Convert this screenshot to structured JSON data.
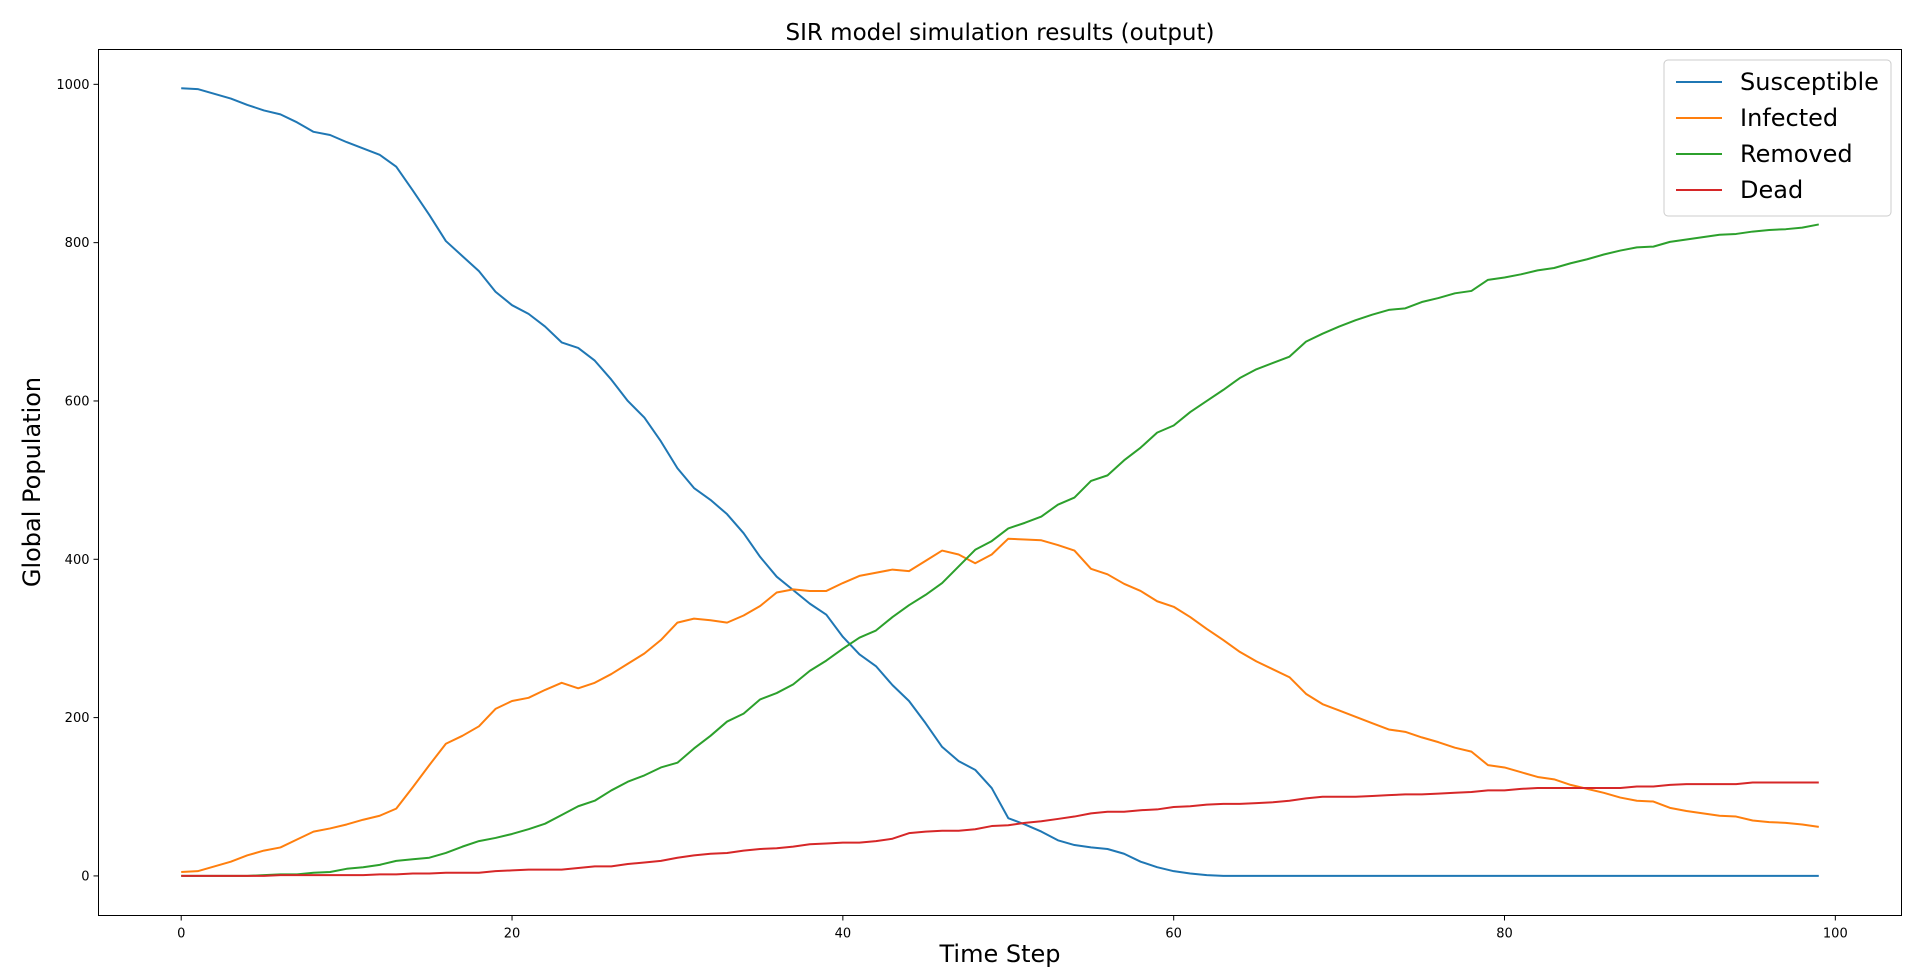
{
  "chart_data": {
    "type": "line",
    "title": "SIR model simulation results (output)",
    "xlabel": "Time Step",
    "ylabel": "Global Population",
    "xlim": [
      -5,
      104
    ],
    "ylim": [
      -50,
      1044
    ],
    "xticks": [
      0,
      20,
      40,
      60,
      80,
      100
    ],
    "yticks": [
      0,
      200,
      400,
      600,
      800,
      1000
    ],
    "grid": false,
    "legend_position": "top-right",
    "x": [
      0,
      1,
      2,
      3,
      4,
      5,
      6,
      7,
      8,
      9,
      10,
      11,
      12,
      13,
      14,
      15,
      16,
      17,
      18,
      19,
      20,
      21,
      22,
      23,
      24,
      25,
      26,
      27,
      28,
      29,
      30,
      31,
      32,
      33,
      34,
      35,
      36,
      37,
      38,
      39,
      40,
      41,
      42,
      43,
      44,
      45,
      46,
      47,
      48,
      49,
      50,
      51,
      52,
      53,
      54,
      55,
      56,
      57,
      58,
      59,
      60,
      61,
      62,
      63,
      64,
      65,
      66,
      67,
      68,
      69,
      70,
      71,
      72,
      73,
      74,
      75,
      76,
      77,
      78,
      79,
      80,
      81,
      82,
      83,
      84,
      85,
      86,
      87,
      88,
      89,
      90,
      91,
      92,
      93,
      94,
      95,
      96,
      97,
      98,
      99
    ],
    "series": [
      {
        "name": "Susceptible",
        "color": "#1f77b4",
        "values": [
          995,
          994,
          988,
          982,
          974,
          967,
          962,
          952,
          940,
          936,
          927,
          919,
          911,
          896,
          866,
          835,
          802,
          783,
          764,
          738,
          721,
          710,
          694,
          674,
          667,
          651,
          627,
          600,
          579,
          549,
          515,
          490,
          475,
          457,
          433,
          403,
          378,
          361,
          344,
          330,
          302,
          280,
          265,
          241,
          221,
          193,
          163,
          145,
          134,
          111,
          73,
          65,
          56,
          45,
          39,
          36,
          34,
          28,
          18,
          11,
          6,
          3,
          1,
          0,
          0,
          0,
          0,
          0,
          0,
          0,
          0,
          0,
          0,
          0,
          0,
          0,
          0,
          0,
          0,
          0,
          0,
          0,
          0,
          0,
          0,
          0,
          0,
          0,
          0,
          0,
          0,
          0,
          0,
          0,
          0,
          0,
          0,
          0,
          0,
          0
        ]
      },
      {
        "name": "Infected",
        "color": "#ff7f0e",
        "values": [
          5,
          6,
          12,
          18,
          26,
          32,
          36,
          46,
          56,
          60,
          65,
          71,
          76,
          85,
          112,
          140,
          167,
          177,
          189,
          211,
          221,
          225,
          235,
          244,
          237,
          244,
          255,
          268,
          281,
          298,
          320,
          325,
          323,
          320,
          329,
          341,
          358,
          362,
          360,
          360,
          370,
          379,
          383,
          387,
          385,
          398,
          411,
          406,
          395,
          406,
          426,
          425,
          424,
          418,
          411,
          388,
          381,
          369,
          360,
          347,
          340,
          327,
          312,
          298,
          283,
          271,
          261,
          251,
          230,
          217,
          209,
          201,
          193,
          185,
          182,
          175,
          169,
          162,
          157,
          140,
          137,
          131,
          125,
          122,
          115,
          110,
          105,
          99,
          95,
          94,
          86,
          82,
          79,
          76,
          75,
          70,
          68,
          67,
          65,
          62
        ]
      },
      {
        "name": "Removed",
        "color": "#2ca02c",
        "values": [
          0,
          0,
          0,
          0,
          0,
          1,
          2,
          2,
          4,
          5,
          9,
          11,
          14,
          19,
          21,
          23,
          29,
          37,
          44,
          48,
          53,
          59,
          66,
          77,
          88,
          95,
          108,
          119,
          127,
          137,
          143,
          161,
          177,
          195,
          205,
          223,
          231,
          242,
          259,
          272,
          287,
          301,
          310,
          327,
          342,
          355,
          370,
          391,
          412,
          423,
          439,
          446,
          454,
          469,
          478,
          499,
          506,
          525,
          541,
          560,
          569,
          586,
          600,
          614,
          629,
          640,
          648,
          656,
          675,
          685,
          694,
          702,
          709,
          715,
          717,
          725,
          730,
          736,
          739,
          753,
          756,
          760,
          765,
          768,
          774,
          779,
          785,
          790,
          794,
          795,
          801,
          804,
          807,
          810,
          811,
          814,
          816,
          817,
          819,
          823
        ]
      },
      {
        "name": "Dead",
        "color": "#d62728",
        "values": [
          0,
          0,
          0,
          0,
          0,
          0,
          1,
          1,
          1,
          1,
          1,
          1,
          2,
          2,
          3,
          3,
          4,
          4,
          4,
          6,
          7,
          8,
          8,
          8,
          10,
          12,
          12,
          15,
          17,
          19,
          23,
          26,
          28,
          29,
          32,
          34,
          35,
          37,
          40,
          41,
          42,
          42,
          44,
          47,
          54,
          56,
          57,
          57,
          59,
          63,
          64,
          67,
          69,
          72,
          75,
          79,
          81,
          81,
          83,
          84,
          87,
          88,
          90,
          91,
          91,
          92,
          93,
          95,
          98,
          100,
          100,
          100,
          101,
          102,
          103,
          103,
          104,
          105,
          106,
          108,
          108,
          110,
          111,
          111,
          111,
          111,
          111,
          111,
          113,
          113,
          115,
          116,
          116,
          116,
          116,
          118,
          118,
          118,
          118,
          118
        ]
      }
    ]
  }
}
